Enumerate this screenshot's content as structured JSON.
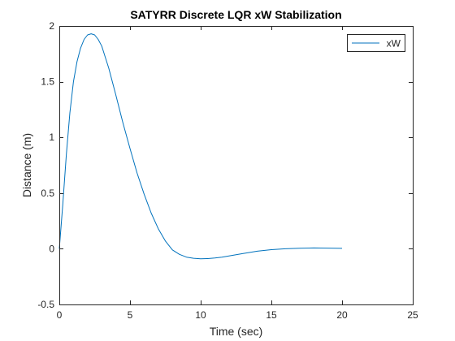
{
  "chart_data": {
    "type": "line",
    "title": "SATYRR Discrete LQR xW Stabilization",
    "xlabel": "Time (sec)",
    "ylabel": "Distance (m)",
    "xlim": [
      0,
      25
    ],
    "ylim": [
      -0.5,
      2
    ],
    "xticks": [
      0,
      5,
      10,
      15,
      20,
      25
    ],
    "yticks": [
      -0.5,
      0,
      0.5,
      1,
      1.5,
      2
    ],
    "xtick_labels": [
      "0",
      "5",
      "10",
      "15",
      "20",
      "25"
    ],
    "ytick_labels": [
      "-0.5",
      "0",
      "0.5",
      "1",
      "1.5",
      "2"
    ],
    "grid": false,
    "legend_location": "top-right",
    "series": [
      {
        "name": "xW",
        "color": "#0072BD",
        "x": [
          0,
          0.25,
          0.5,
          0.75,
          1.0,
          1.25,
          1.5,
          1.75,
          2.0,
          2.25,
          2.5,
          2.75,
          3.0,
          3.5,
          4.0,
          4.5,
          5.0,
          5.5,
          6.0,
          6.5,
          7.0,
          7.5,
          8.0,
          8.5,
          9.0,
          9.5,
          10.0,
          10.5,
          11.0,
          11.5,
          12.0,
          13.0,
          14.0,
          15.0,
          16.0,
          17.0,
          18.0,
          19.0,
          20.0
        ],
        "y": [
          0,
          0.4,
          0.85,
          1.22,
          1.5,
          1.68,
          1.8,
          1.88,
          1.92,
          1.93,
          1.92,
          1.88,
          1.82,
          1.62,
          1.38,
          1.13,
          0.9,
          0.68,
          0.49,
          0.32,
          0.18,
          0.07,
          -0.01,
          -0.05,
          -0.075,
          -0.085,
          -0.09,
          -0.088,
          -0.082,
          -0.075,
          -0.065,
          -0.042,
          -0.022,
          -0.008,
          0.0,
          0.005,
          0.007,
          0.006,
          0.004
        ]
      }
    ]
  }
}
